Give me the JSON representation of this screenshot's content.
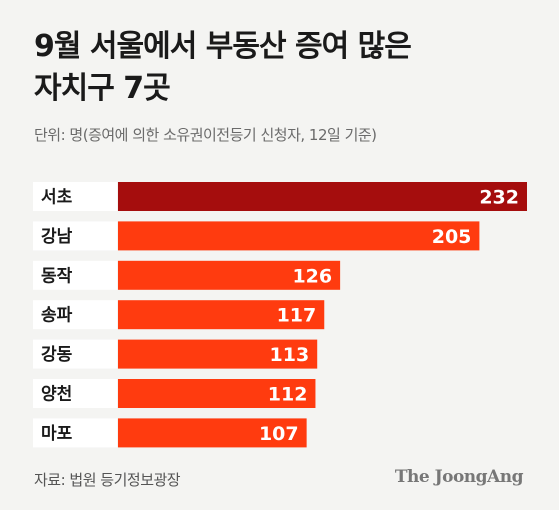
{
  "title_line1": "9월 서울에서 부동산 증여 많은",
  "title_line2": "자치구 7곳",
  "unit": "단위: 명(증여에 의한 소유권이전등기 신청자, 12일 기준)",
  "source": "자료: 법원 등기정보광장",
  "brand": "The JoongAng",
  "colors": {
    "highlight": "#a50d0d",
    "bar": "#ff3b0f",
    "background": "#f4f4f2"
  },
  "chart_data": {
    "type": "bar",
    "orientation": "horizontal",
    "categories": [
      "서초",
      "강남",
      "동작",
      "송파",
      "강동",
      "양천",
      "마포"
    ],
    "values": [
      232,
      205,
      126,
      117,
      113,
      112,
      107
    ],
    "xlim": [
      0,
      232
    ],
    "grid": false,
    "legend": false,
    "data_labels": true
  }
}
